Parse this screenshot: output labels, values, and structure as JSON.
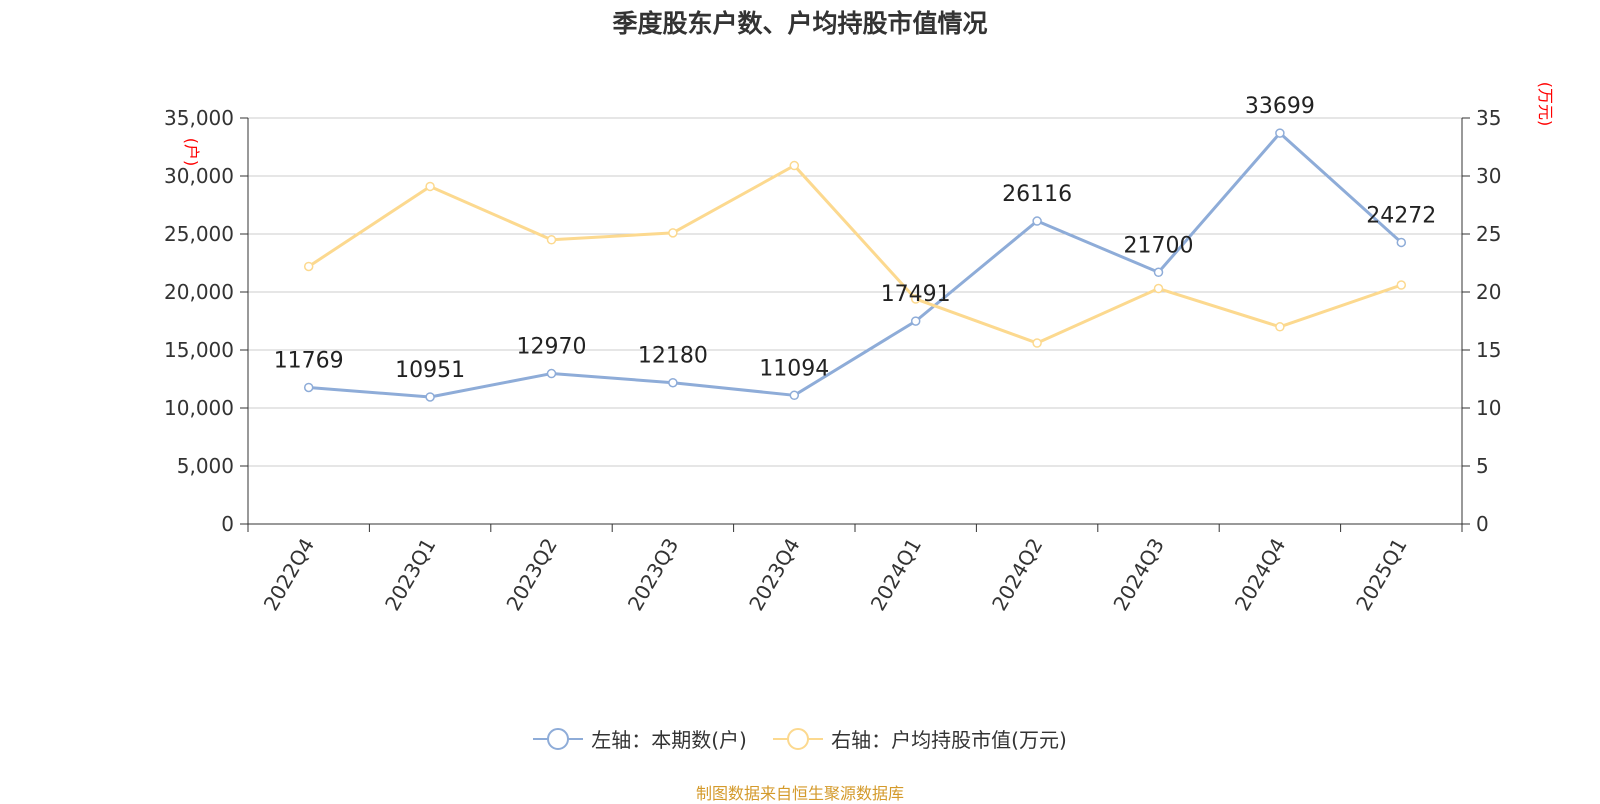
{
  "chart_data": {
    "type": "line",
    "title": "季度股东户数、户均持股市值情况",
    "categories": [
      "2022Q4",
      "2023Q1",
      "2023Q2",
      "2023Q3",
      "2023Q4",
      "2024Q1",
      "2024Q2",
      "2024Q3",
      "2024Q4",
      "2025Q1"
    ],
    "series": [
      {
        "name": "左轴：本期数(户)",
        "axis": "left",
        "color": "#8eacd8",
        "values": [
          11769,
          10951,
          12970,
          12180,
          11094,
          17491,
          26116,
          21700,
          33699,
          24272
        ],
        "labels": [
          "11769",
          "10951",
          "12970",
          "12180",
          "11094",
          "17491",
          "26116",
          "21700",
          "33699",
          "24272"
        ]
      },
      {
        "name": "右轴：户均持股市值(万元)",
        "axis": "right",
        "color": "#fcd98f",
        "values": [
          22.2,
          29.1,
          24.5,
          25.1,
          30.9,
          19.4,
          15.6,
          20.3,
          17.0,
          20.6
        ]
      }
    ],
    "y_left": {
      "label": "(户)",
      "ylim": [
        0,
        35000
      ],
      "ticks": [
        "0",
        "5,000",
        "10,000",
        "15,000",
        "20,000",
        "25,000",
        "30,000",
        "35,000"
      ]
    },
    "y_right": {
      "label": "(万元)",
      "ylim": [
        0,
        35
      ],
      "ticks": [
        "0",
        "5",
        "10",
        "15",
        "20",
        "25",
        "30",
        "35"
      ]
    },
    "grid": true,
    "legend_position": "bottom"
  },
  "source_text": "制图数据来自恒生聚源数据库",
  "source_color": "#d49a2b",
  "axis_label_color": "#ff0000"
}
